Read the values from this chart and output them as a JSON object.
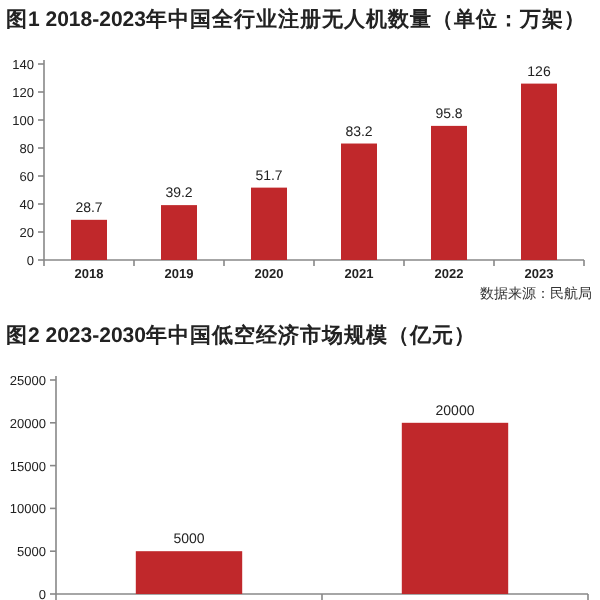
{
  "chart_data": [
    {
      "type": "bar",
      "title": "图1  2018-2023年中国全行业注册无人机数量（单位：万架）",
      "categories": [
        "2018",
        "2019",
        "2020",
        "2021",
        "2022",
        "2023"
      ],
      "values": [
        28.7,
        39.2,
        51.7,
        83.2,
        95.8,
        126
      ],
      "color": "#c0282b",
      "ylim": [
        0,
        140
      ],
      "yticks": [
        0,
        20,
        40,
        60,
        80,
        100,
        120,
        140
      ],
      "data_labels": true,
      "annotations": [
        "数据来源：民航局"
      ]
    },
    {
      "type": "bar",
      "title": "图2  2023-2030年中国低空经济市场规模（亿元）",
      "categories": [
        null,
        null
      ],
      "values": [
        5000,
        20000
      ],
      "color": "#c0282b",
      "ylim": [
        0,
        25000
      ],
      "yticks": [
        0,
        5000,
        10000,
        15000,
        20000,
        25000
      ],
      "data_labels": true
    }
  ]
}
